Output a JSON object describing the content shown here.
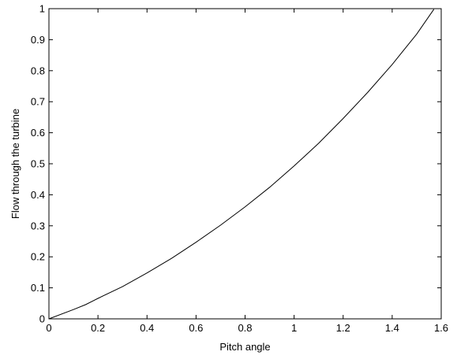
{
  "chart_data": {
    "type": "line",
    "title": "",
    "xlabel": "Pitch angle",
    "ylabel": "Flow through the turbine",
    "xlim": [
      0,
      1.6
    ],
    "ylim": [
      0,
      1
    ],
    "xticks": [
      "0",
      "0.2",
      "0.4",
      "0.6",
      "0.8",
      "1",
      "1.2",
      "1.4",
      "1.6"
    ],
    "yticks": [
      "0",
      "0.1",
      "0.2",
      "0.3",
      "0.4",
      "0.5",
      "0.6",
      "0.7",
      "0.8",
      "0.9",
      "1"
    ],
    "grid": false,
    "line_color": "#000000",
    "series": [
      {
        "x": [
          0,
          0.1,
          0.15,
          0.2,
          0.3,
          0.4,
          0.5,
          0.6,
          0.7,
          0.8,
          0.9,
          1.0,
          1.1,
          1.2,
          1.3,
          1.4,
          1.5,
          1.57
        ],
        "y": [
          0,
          0.03,
          0.046,
          0.066,
          0.104,
          0.148,
          0.195,
          0.247,
          0.302,
          0.361,
          0.424,
          0.493,
          0.566,
          0.646,
          0.73,
          0.82,
          0.918,
          0.998
        ]
      }
    ]
  }
}
